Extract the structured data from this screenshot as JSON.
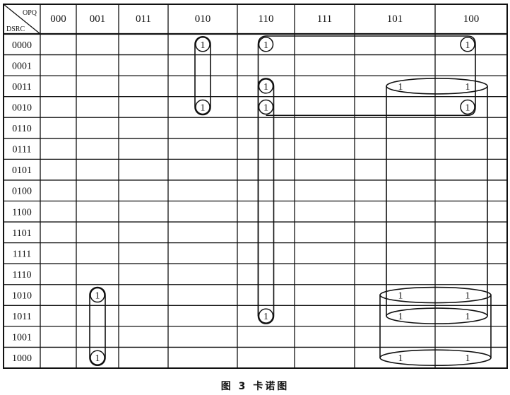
{
  "corner": {
    "top_label": "OPQ",
    "bottom_label": "DSRC"
  },
  "columns": [
    "000",
    "001",
    "011",
    "010",
    "110",
    "111",
    "101",
    "100"
  ],
  "rows": [
    "0000",
    "0001",
    "0011",
    "0010",
    "0110",
    "0111",
    "0101",
    "0100",
    "1100",
    "1101",
    "1111",
    "1110",
    "1010",
    "1011",
    "1001",
    "1000"
  ],
  "cell_value": "1",
  "ones": [
    {
      "row": "0000",
      "col": "010",
      "style": "circled"
    },
    {
      "row": "0010",
      "col": "010",
      "style": "circled"
    },
    {
      "row": "0000",
      "col": "110",
      "style": "circled"
    },
    {
      "row": "0011",
      "col": "110",
      "style": "circled"
    },
    {
      "row": "0010",
      "col": "110",
      "style": "circled"
    },
    {
      "row": "1011",
      "col": "110",
      "style": "circled"
    },
    {
      "row": "0000",
      "col": "100",
      "style": "circled"
    },
    {
      "row": "0010",
      "col": "100",
      "style": "circled"
    },
    {
      "row": "1010",
      "col": "001",
      "style": "circled"
    },
    {
      "row": "1000",
      "col": "001",
      "style": "circled"
    },
    {
      "row": "0011",
      "col": "101",
      "style": "plain"
    },
    {
      "row": "0011",
      "col": "100",
      "style": "plain"
    },
    {
      "row": "1010",
      "col": "101",
      "style": "plain"
    },
    {
      "row": "1010",
      "col": "100",
      "style": "plain"
    },
    {
      "row": "1011",
      "col": "101",
      "style": "plain"
    },
    {
      "row": "1011",
      "col": "100",
      "style": "plain"
    },
    {
      "row": "1000",
      "col": "101",
      "style": "plain"
    },
    {
      "row": "1000",
      "col": "100",
      "style": "plain"
    }
  ],
  "caption": "图 3  卡诺图"
}
